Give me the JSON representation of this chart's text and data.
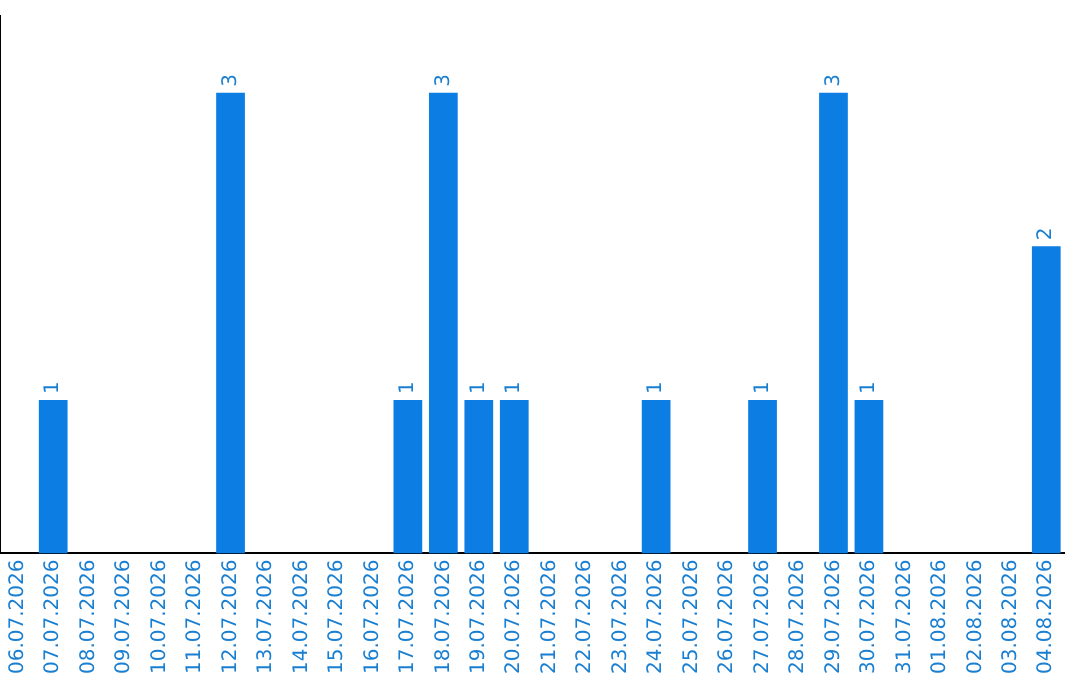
{
  "chart_data": {
    "type": "bar",
    "categories": [
      "06.07.2026",
      "07.07.2026",
      "08.07.2026",
      "09.07.2026",
      "10.07.2026",
      "11.07.2026",
      "12.07.2026",
      "13.07.2026",
      "14.07.2026",
      "15.07.2026",
      "16.07.2026",
      "17.07.2026",
      "18.07.2026",
      "19.07.2026",
      "20.07.2026",
      "21.07.2026",
      "22.07.2026",
      "23.07.2026",
      "24.07.2026",
      "25.07.2026",
      "26.07.2026",
      "27.07.2026",
      "28.07.2026",
      "29.07.2026",
      "30.07.2026",
      "31.07.2026",
      "01.08.2026",
      "02.08.2026",
      "03.08.2026",
      "04.08.2026"
    ],
    "values": [
      0,
      1,
      0,
      0,
      0,
      0,
      3,
      0,
      0,
      0,
      0,
      1,
      3,
      1,
      1,
      0,
      0,
      0,
      1,
      0,
      0,
      1,
      0,
      3,
      1,
      0,
      0,
      0,
      0,
      2
    ],
    "value_labels": [
      null,
      "1",
      null,
      null,
      null,
      null,
      "3",
      null,
      null,
      null,
      null,
      "1",
      "3",
      "1",
      "1",
      null,
      null,
      null,
      "1",
      null,
      null,
      "1",
      null,
      "3",
      "1",
      null,
      null,
      null,
      null,
      "2"
    ],
    "color": "#0b7de3",
    "grid": false,
    "legend": false,
    "tick_labels": "x"
  }
}
